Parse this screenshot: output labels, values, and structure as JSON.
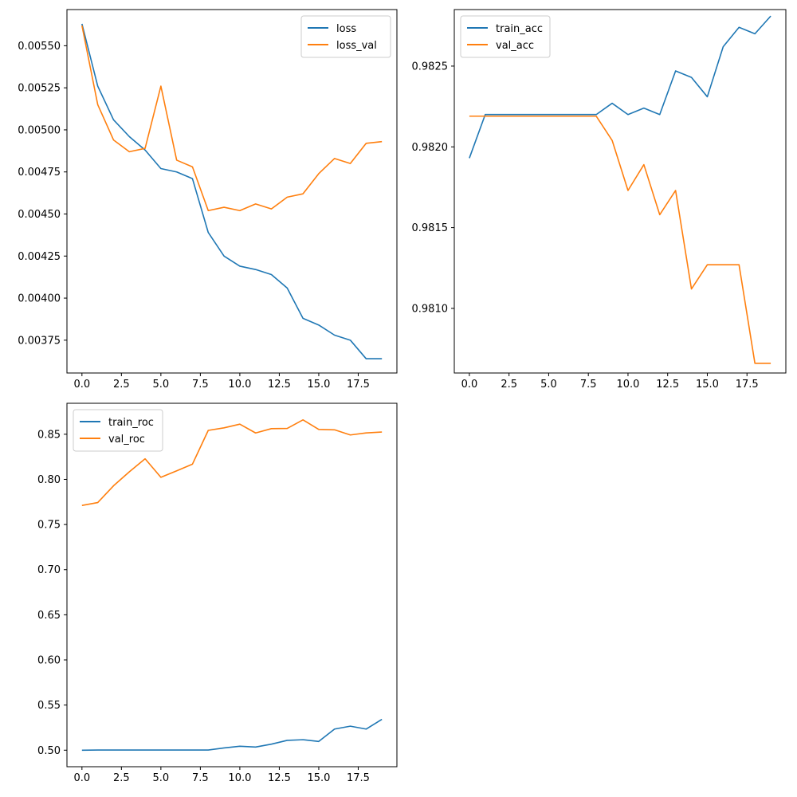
{
  "chart_data": [
    {
      "type": "line",
      "xticks": [
        0,
        2.5,
        5,
        7.5,
        10,
        12.5,
        15,
        17.5
      ],
      "xtick_labels": [
        "0.0",
        "2.5",
        "5.0",
        "7.5",
        "10.0",
        "12.5",
        "15.0",
        "17.5"
      ],
      "xlim": [
        -0.95,
        19.95
      ],
      "yticks": [
        0.00375,
        0.004,
        0.00425,
        0.0045,
        0.00475,
        0.005,
        0.00525,
        0.0055
      ],
      "ytick_labels": [
        "0.00375",
        "0.00400",
        "0.00425",
        "0.00450",
        "0.00475",
        "0.00500",
        "0.00525",
        "0.00550"
      ],
      "ylim": [
        0.003555,
        0.005715
      ],
      "legend_position": "top-right",
      "x": [
        0,
        1,
        2,
        3,
        4,
        5,
        6,
        7,
        8,
        9,
        10,
        11,
        12,
        13,
        14,
        15,
        16,
        17,
        18,
        19
      ],
      "series": [
        {
          "name": "loss",
          "color": "#1f77b4",
          "values": [
            0.00563,
            0.00526,
            0.00506,
            0.00496,
            0.00488,
            0.00477,
            0.00475,
            0.00471,
            0.00439,
            0.00425,
            0.00419,
            0.00417,
            0.00414,
            0.00406,
            0.00388,
            0.00384,
            0.00378,
            0.00375,
            0.00364,
            0.00364
          ]
        },
        {
          "name": "loss_val",
          "color": "#ff7f0e",
          "values": [
            0.00562,
            0.00515,
            0.00494,
            0.00487,
            0.00489,
            0.00526,
            0.00482,
            0.00478,
            0.00452,
            0.00454,
            0.00452,
            0.00456,
            0.00453,
            0.0046,
            0.00462,
            0.00474,
            0.00483,
            0.0048,
            0.00492,
            0.00493
          ]
        }
      ]
    },
    {
      "type": "line",
      "xticks": [
        0,
        2.5,
        5,
        7.5,
        10,
        12.5,
        15,
        17.5
      ],
      "xtick_labels": [
        "0.0",
        "2.5",
        "5.0",
        "7.5",
        "10.0",
        "12.5",
        "15.0",
        "17.5"
      ],
      "xlim": [
        -0.95,
        19.95
      ],
      "yticks": [
        0.981,
        0.9815,
        0.982,
        0.9825
      ],
      "ytick_labels": [
        "0.9810",
        "0.9815",
        "0.9820",
        "0.9825"
      ],
      "ylim": [
        0.9806,
        0.98285
      ],
      "legend_position": "top-left",
      "x": [
        0,
        1,
        2,
        3,
        4,
        5,
        6,
        7,
        8,
        9,
        10,
        11,
        12,
        13,
        14,
        15,
        16,
        17,
        18,
        19
      ],
      "series": [
        {
          "name": "train_acc",
          "color": "#1f77b4",
          "values": [
            0.98193,
            0.9822,
            0.9822,
            0.9822,
            0.9822,
            0.9822,
            0.9822,
            0.9822,
            0.9822,
            0.98227,
            0.9822,
            0.98224,
            0.9822,
            0.98247,
            0.98243,
            0.98231,
            0.98262,
            0.98274,
            0.9827,
            0.98281
          ]
        },
        {
          "name": "val_acc",
          "color": "#ff7f0e",
          "values": [
            0.98219,
            0.98219,
            0.98219,
            0.98219,
            0.98219,
            0.98219,
            0.98219,
            0.98219,
            0.98219,
            0.98204,
            0.98173,
            0.98189,
            0.98158,
            0.98173,
            0.98112,
            0.98127,
            0.98127,
            0.98127,
            0.98066,
            0.98066
          ]
        }
      ]
    },
    {
      "type": "line",
      "xticks": [
        0,
        2.5,
        5,
        7.5,
        10,
        12.5,
        15,
        17.5
      ],
      "xtick_labels": [
        "0.0",
        "2.5",
        "5.0",
        "7.5",
        "10.0",
        "12.5",
        "15.0",
        "17.5"
      ],
      "xlim": [
        -0.95,
        19.95
      ],
      "yticks": [
        0.5,
        0.55,
        0.6,
        0.65,
        0.7,
        0.75,
        0.8,
        0.85
      ],
      "ytick_labels": [
        "0.50",
        "0.55",
        "0.60",
        "0.65",
        "0.70",
        "0.75",
        "0.80",
        "0.85"
      ],
      "ylim": [
        0.4817,
        0.8843
      ],
      "legend_position": "top-left",
      "x": [
        0,
        1,
        2,
        3,
        4,
        5,
        6,
        7,
        8,
        9,
        10,
        11,
        12,
        13,
        14,
        15,
        16,
        17,
        18,
        19
      ],
      "series": [
        {
          "name": "train_roc",
          "color": "#1f77b4",
          "values": [
            0.5,
            0.5002,
            0.5002,
            0.5002,
            0.5002,
            0.5002,
            0.5002,
            0.5002,
            0.5002,
            0.5025,
            0.5044,
            0.5035,
            0.5067,
            0.5109,
            0.5116,
            0.5097,
            0.5234,
            0.5266,
            0.5234,
            0.5342
          ]
        },
        {
          "name": "val_roc",
          "color": "#ff7f0e",
          "values": [
            0.7711,
            0.7743,
            0.7929,
            0.8084,
            0.8228,
            0.8023,
            0.8095,
            0.8169,
            0.8543,
            0.8571,
            0.8612,
            0.8514,
            0.8562,
            0.8564,
            0.8659,
            0.8553,
            0.8549,
            0.8492,
            0.8515,
            0.8525
          ]
        }
      ]
    }
  ]
}
